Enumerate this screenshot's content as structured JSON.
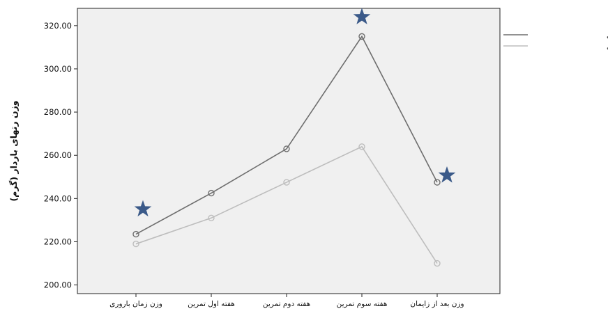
{
  "chart_data": {
    "type": "line",
    "categories": [
      "وزن زمان باروری",
      "هفته اول تمرین",
      "هفته دوم تمرین",
      "هفته سوم تمرین",
      "وزن بعد از زایمان"
    ],
    "series": [
      {
        "name": "گروه تمرین بارداری",
        "values": [
          223.5,
          242.5,
          263.0,
          315.0,
          247.5
        ],
        "color": "#6e6e6e"
      },
      {
        "name": "گروه کنترل",
        "values": [
          219.0,
          231.0,
          247.5,
          264.0,
          210.0
        ],
        "color": "#bdbdbd"
      }
    ],
    "ylabel": "وزن رتهای باردار (گرم)",
    "xlabel": "",
    "ylim": [
      196,
      328
    ],
    "yticks": [
      "200.00",
      "220.00",
      "240.00",
      "260.00",
      "280.00",
      "300.00",
      "320.00"
    ],
    "grid": false,
    "legend_position": "right",
    "plot_background": "#f0f0f0",
    "significance_markers": {
      "symbol": "star",
      "color": "#3b5a89",
      "categories": [
        "وزن زمان باروری",
        "هفته سوم تمرین",
        "وزن بعد از زایمان"
      ]
    }
  }
}
